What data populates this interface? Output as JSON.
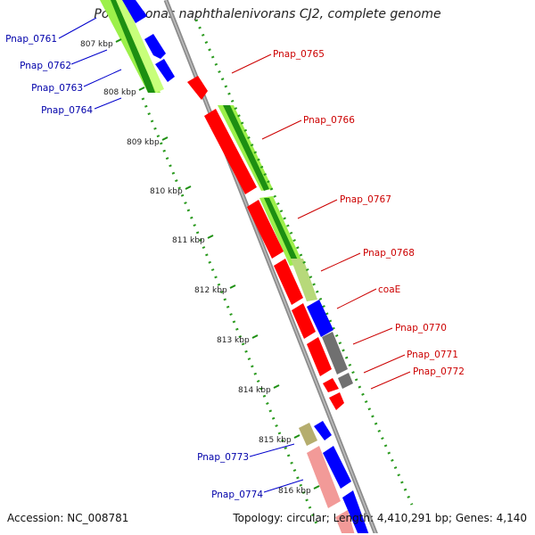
{
  "title": "Polaromonas naphthalenivorans CJ2, complete genome",
  "accession": "Accession: NC_008781",
  "summary": "Topology: circular; Length: 4,410,291 bp; Genes: 4,140",
  "colors": {
    "forward_cds": "#ff0000",
    "reverse_cds": "#0000ff",
    "gray_feature": "#707070",
    "olive_feature": "#b5ad6e",
    "pink_feature": "#f29a98",
    "gc_bar": "#22a316",
    "backbone": "#8c8c8c"
  },
  "kbp_ticks": [
    "807 kbp",
    "808 kbp",
    "809 kbp",
    "810 kbp",
    "811 kbp",
    "812 kbp",
    "813 kbp",
    "814 kbp",
    "815 kbp",
    "816 kbp"
  ],
  "genes_left": [
    "Pnap_0761",
    "Pnap_0762",
    "Pnap_0763",
    "Pnap_0764",
    "Pnap_0773",
    "Pnap_0774"
  ],
  "genes_right": [
    "Pnap_0765",
    "Pnap_0766",
    "Pnap_0767",
    "Pnap_0768",
    "coaE",
    "Pnap_0770",
    "Pnap_0771",
    "Pnap_0772"
  ]
}
